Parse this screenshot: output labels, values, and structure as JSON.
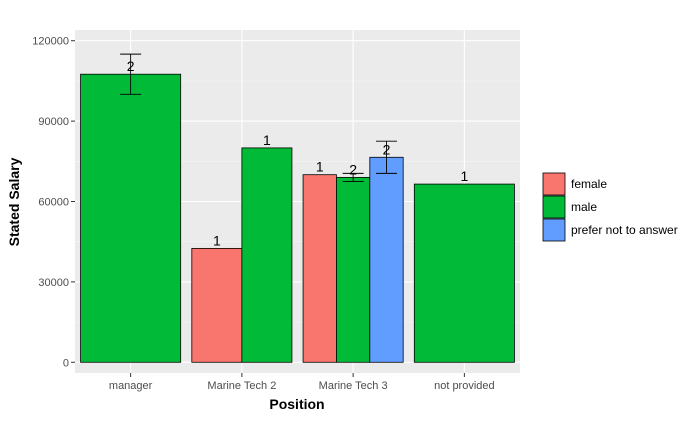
{
  "chart_data": {
    "type": "bar",
    "xlabel": "Position",
    "ylabel": "Stated Salary",
    "ylim": [
      -4000,
      124000
    ],
    "y_ticks": [
      0,
      30000,
      60000,
      90000,
      120000
    ],
    "y_tick_labels": [
      "0",
      "30000",
      "60000",
      "90000",
      "120000"
    ],
    "grid": true,
    "legend_position": "right",
    "categories": [
      "manager",
      "Marine Tech 2",
      "Marine Tech 3",
      "not provided"
    ],
    "groups": [
      [
        "male"
      ],
      [
        "female",
        "male"
      ],
      [
        "female",
        "male",
        "prefer not to answer"
      ],
      [
        "male"
      ]
    ],
    "series": [
      {
        "name": "female",
        "color": "#F8766D",
        "values": [
          null,
          42500,
          70000,
          null
        ],
        "counts": [
          null,
          "1",
          "1",
          null
        ],
        "error": [
          null,
          null,
          null,
          null
        ]
      },
      {
        "name": "male",
        "color": "#00BA38",
        "values": [
          107500,
          80000,
          69000,
          66500
        ],
        "counts": [
          "2",
          "1",
          "2",
          "1"
        ],
        "error": [
          [
            100000,
            115000
          ],
          null,
          [
            67500,
            70500
          ],
          null
        ]
      },
      {
        "name": "prefer not to answer",
        "color": "#619CFF",
        "values": [
          null,
          null,
          76500,
          null
        ],
        "counts": [
          null,
          null,
          "2",
          null
        ],
        "error": [
          null,
          null,
          [
            70500,
            82500
          ],
          null
        ]
      }
    ]
  }
}
